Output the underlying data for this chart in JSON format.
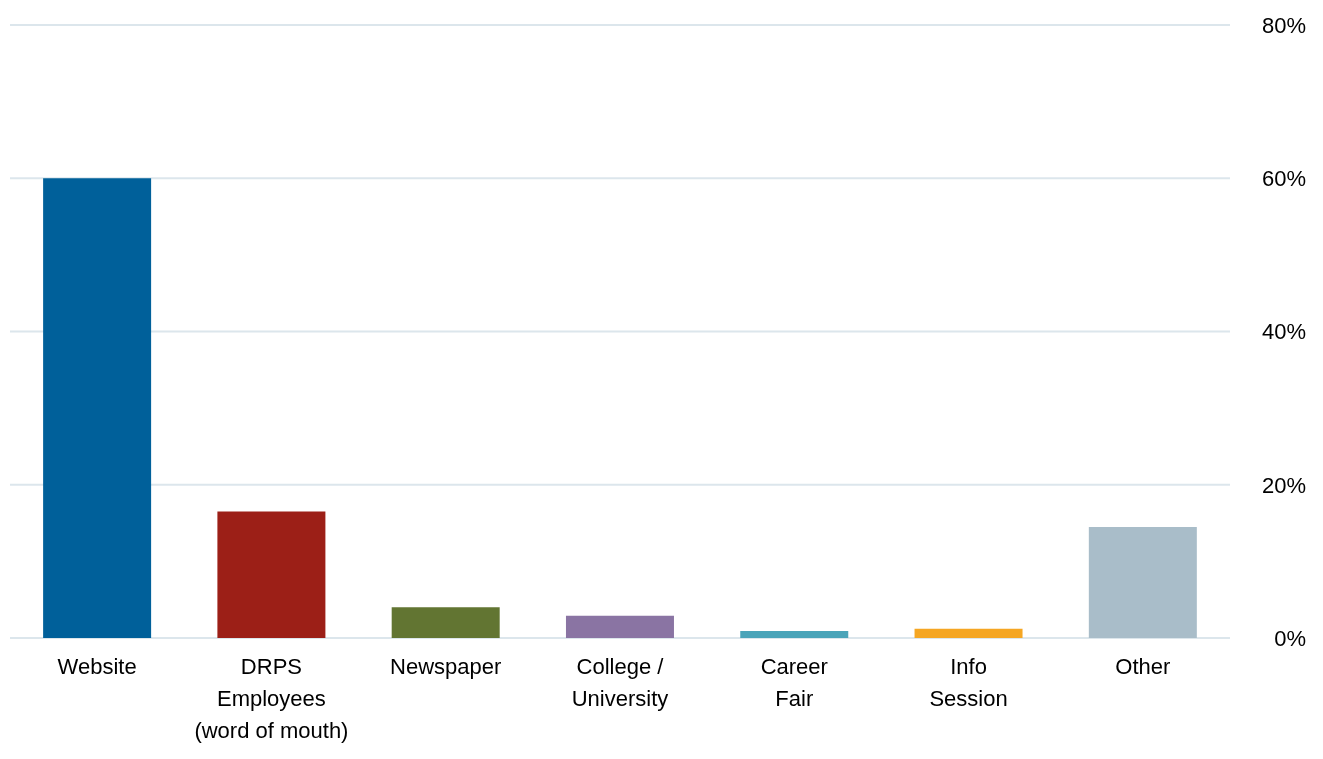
{
  "chart_data": {
    "type": "bar",
    "categories": [
      "Website",
      "DRPS\nEmployees\n(word of mouth)",
      "Newspaper",
      "College /\nUniversity",
      "Career\nFair",
      "Info\nSession",
      "Other"
    ],
    "values": [
      60,
      16.5,
      4,
      2.9,
      0.9,
      1.2,
      14.5
    ],
    "colors": [
      "#00609a",
      "#9c1f17",
      "#627532",
      "#8a74a3",
      "#4aa4b9",
      "#f5a623",
      "#a9bdc9"
    ],
    "ylim": [
      0,
      80
    ],
    "yticks": [
      {
        "value": 0,
        "label": "0%"
      },
      {
        "value": 20,
        "label": "20%"
      },
      {
        "value": 40,
        "label": "40%"
      },
      {
        "value": 60,
        "label": "60%"
      },
      {
        "value": 80,
        "label": "80%"
      }
    ],
    "grid": "y"
  }
}
